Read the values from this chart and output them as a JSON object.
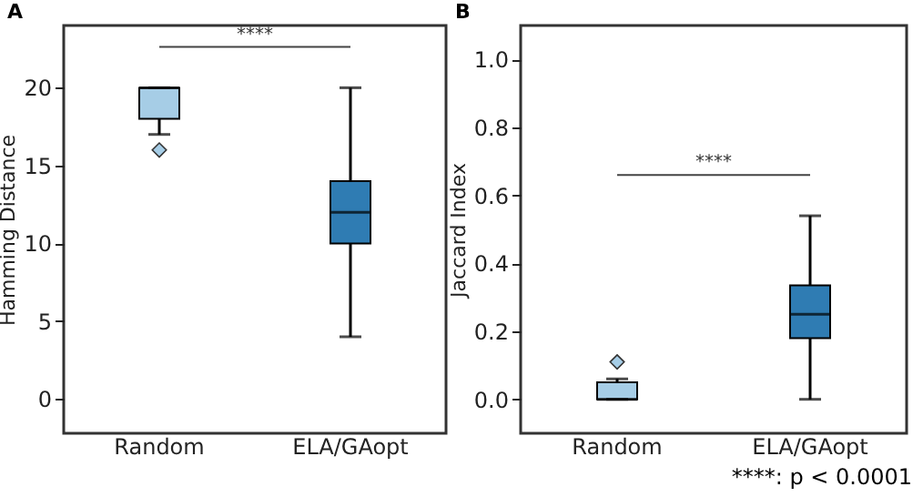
{
  "chart_data": [
    {
      "type": "box",
      "title": "A",
      "ylabel": "Hamming Distance",
      "categories": [
        "Random",
        "ELA/GAopt"
      ],
      "colors": [
        "#a6cde6",
        "#2f7cb3"
      ],
      "boxes": [
        {
          "low": 17,
          "q1": 18,
          "median": 20,
          "q3": 20,
          "high": 20,
          "outliers": [
            16
          ]
        },
        {
          "low": 4,
          "q1": 10,
          "median": 12,
          "q3": 14,
          "high": 20
        }
      ],
      "ylim": [
        -2.2,
        24
      ],
      "yticks": [
        0,
        5,
        10,
        15,
        20
      ],
      "annotations": [
        "****"
      ]
    },
    {
      "type": "box",
      "title": "B",
      "ylabel": "Jaccard Index",
      "categories": [
        "Random",
        "ELA/GAopt"
      ],
      "colors": [
        "#a6cde6",
        "#2f7cb3"
      ],
      "boxes": [
        {
          "low": 0,
          "q1": 0,
          "median": 0,
          "q3": 0.05,
          "high": 0.06,
          "outliers": [
            0.11
          ]
        },
        {
          "low": 0,
          "q1": 0.18,
          "median": 0.25,
          "q3": 0.335,
          "high": 0.54
        }
      ],
      "ylim": [
        -0.1,
        1.1
      ],
      "yticks": [
        {
          "value": 0,
          "label": "0.0"
        },
        0.2,
        0.4,
        0.6,
        0.8,
        {
          "value": 1,
          "label": "1.0"
        }
      ],
      "annotations": [
        "****",
        "****: p < 0.0001"
      ]
    }
  ]
}
